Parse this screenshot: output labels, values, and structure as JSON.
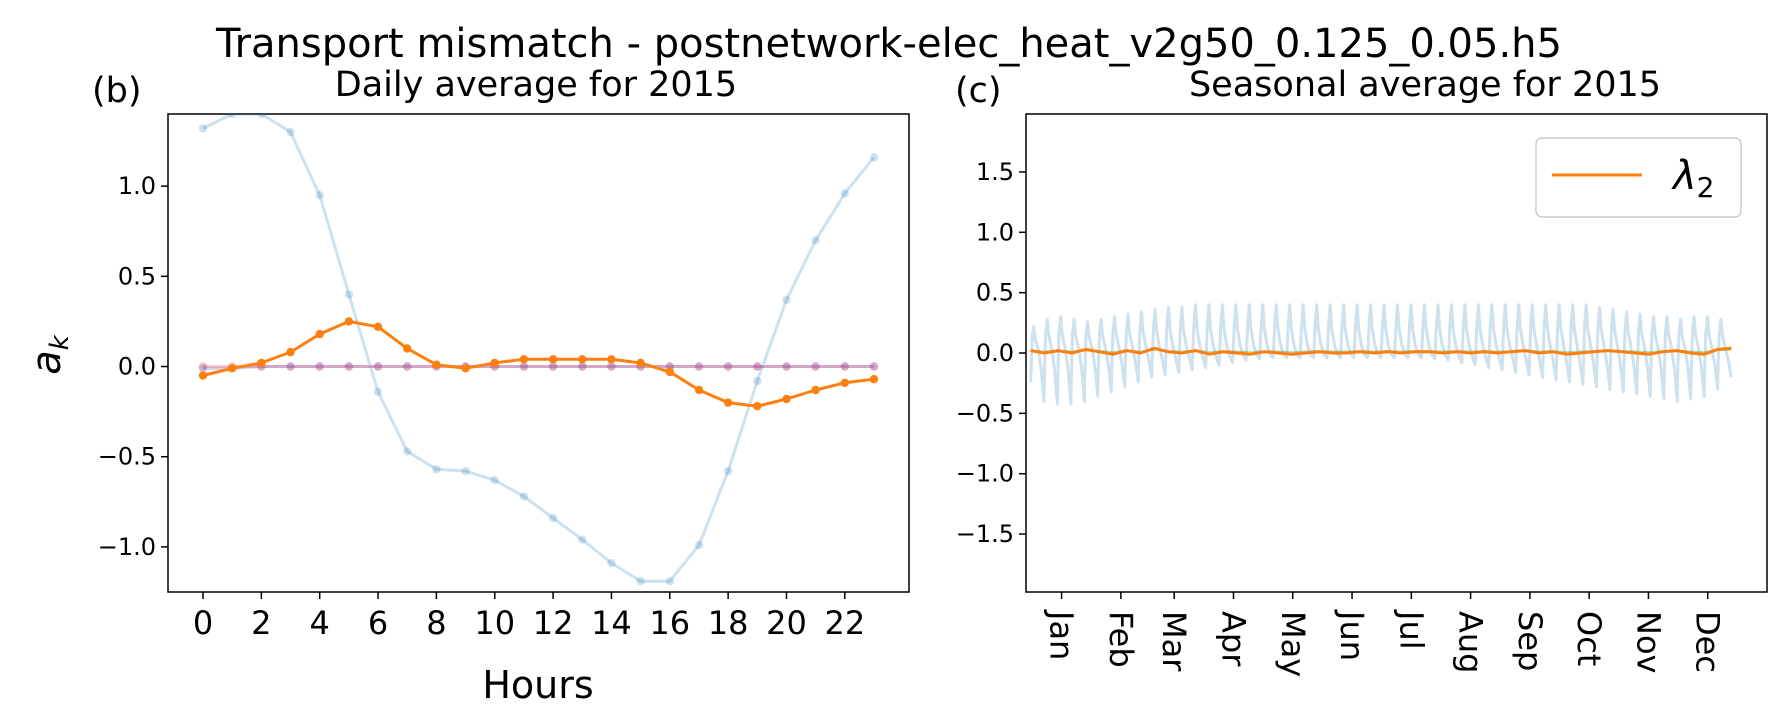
{
  "figure": {
    "suptitle": "Transport mismatch - postnetwork-elec_heat_v2g50_0.125_0.05.h5"
  },
  "colors": {
    "blue": "#1f77b4",
    "orange": "#ff7f0e",
    "red": "#d62728",
    "purple": "#9467bd",
    "green": "#2ca02c"
  },
  "chart_data": [
    {
      "panel_label": "(b)",
      "type": "line",
      "title": "Daily average for 2015",
      "xlabel": "Hours",
      "ylabel": "a",
      "ylabel_sub": "k",
      "xlim": [
        -1.2,
        24.2
      ],
      "ylim": [
        -1.25,
        1.4
      ],
      "x_ticks": [
        0,
        2,
        4,
        6,
        8,
        10,
        12,
        14,
        16,
        18,
        20,
        22
      ],
      "x_tick_labels": [
        "0",
        "2",
        "4",
        "6",
        "8",
        "10",
        "12",
        "14",
        "16",
        "18",
        "20",
        "22"
      ],
      "y_ticks": [
        1.0,
        0.5,
        0.0,
        -0.5,
        -1.0
      ],
      "y_tick_labels": [
        "1.0",
        "0.5",
        "0.0",
        "−0.5",
        "−1.0"
      ],
      "x": [
        0,
        1,
        2,
        3,
        4,
        5,
        6,
        7,
        8,
        9,
        10,
        11,
        12,
        13,
        14,
        15,
        16,
        17,
        18,
        19,
        20,
        21,
        22,
        23
      ],
      "series": [
        {
          "color": "#1f77b4",
          "alpha": 0.22,
          "values": [
            1.32,
            1.4,
            1.4,
            1.3,
            0.95,
            0.4,
            -0.14,
            -0.47,
            -0.57,
            -0.58,
            -0.63,
            -0.72,
            -0.84,
            -0.96,
            -1.09,
            -1.19,
            -1.19,
            -0.99,
            -0.58,
            -0.08,
            0.37,
            0.7,
            0.96,
            1.16
          ]
        },
        {
          "color": "#d62728",
          "alpha": 0.25,
          "values": [
            0,
            0,
            0,
            0,
            0,
            0,
            0,
            0,
            0,
            0,
            0,
            0,
            0,
            0,
            0,
            0,
            0,
            0,
            0,
            0,
            0,
            0,
            0,
            0
          ]
        },
        {
          "color": "#9467bd",
          "alpha": 0.35,
          "values": [
            -0.01,
            -0.01,
            0,
            0,
            0,
            0,
            0,
            0,
            0,
            0,
            0,
            0,
            0,
            0,
            0,
            0,
            0,
            0,
            0,
            0,
            0,
            0,
            0,
            0
          ]
        },
        {
          "color": "#ff7f0e",
          "alpha": 1.0,
          "values": [
            -0.05,
            -0.01,
            0.02,
            0.08,
            0.18,
            0.25,
            0.22,
            0.1,
            0.01,
            -0.01,
            0.02,
            0.04,
            0.04,
            0.04,
            0.04,
            0.02,
            -0.03,
            -0.13,
            -0.2,
            -0.22,
            -0.18,
            -0.13,
            -0.09,
            -0.07
          ]
        }
      ]
    },
    {
      "panel_label": "(c)",
      "type": "line",
      "title": "Seasonal average for 2015",
      "legend": {
        "label": "λ",
        "sub": "2",
        "position": "upper right"
      },
      "xlim": [
        0,
        12.5
      ],
      "ylim": [
        -1.98,
        1.98
      ],
      "y_ticks": [
        1.5,
        1.0,
        0.5,
        0.0,
        -0.5,
        -1.0,
        -1.5
      ],
      "y_tick_labels": [
        "1.5",
        "1.0",
        "0.5",
        "0.0",
        "−0.5",
        "−1.0",
        "−1.5"
      ],
      "month_ticks": [
        0.6,
        1.6,
        2.5,
        3.5,
        4.5,
        5.5,
        6.5,
        7.5,
        8.5,
        9.5,
        10.5,
        11.5
      ],
      "month_labels": [
        "Jan",
        "Feb",
        "Mar",
        "Apr",
        "May",
        "Jun",
        "Jul",
        "Aug",
        "Sep",
        "Oct",
        "Nov",
        "Dec"
      ],
      "weekly_series": {
        "color": "#1f77b4",
        "alpha": 0.22,
        "start": 0.08,
        "end": 11.9,
        "num_weeks": 52,
        "high": [
          0.22,
          0.28,
          0.3,
          0.28,
          0.26,
          0.28,
          0.3,
          0.32,
          0.34,
          0.36,
          0.38,
          0.38,
          0.4,
          0.4,
          0.4,
          0.4,
          0.4,
          0.4,
          0.4,
          0.4,
          0.4,
          0.4,
          0.4,
          0.4,
          0.4,
          0.4,
          0.4,
          0.4,
          0.4,
          0.4,
          0.4,
          0.4,
          0.4,
          0.4,
          0.4,
          0.4,
          0.4,
          0.4,
          0.4,
          0.4,
          0.4,
          0.4,
          0.38,
          0.36,
          0.34,
          0.32,
          0.3,
          0.3,
          0.28,
          0.3,
          0.3,
          0.28
        ],
        "low": [
          -0.4,
          -0.42,
          -0.42,
          -0.4,
          -0.36,
          -0.32,
          -0.28,
          -0.24,
          -0.2,
          -0.18,
          -0.16,
          -0.14,
          -0.12,
          -0.1,
          -0.08,
          -0.06,
          -0.05,
          -0.04,
          -0.04,
          -0.04,
          -0.04,
          -0.04,
          -0.04,
          -0.04,
          -0.04,
          -0.04,
          -0.04,
          -0.04,
          -0.04,
          -0.05,
          -0.06,
          -0.08,
          -0.1,
          -0.12,
          -0.14,
          -0.16,
          -0.18,
          -0.2,
          -0.22,
          -0.24,
          -0.26,
          -0.28,
          -0.3,
          -0.32,
          -0.34,
          -0.36,
          -0.38,
          -0.4,
          -0.38,
          -0.36,
          -0.3,
          -0.2
        ]
      },
      "lambda2_series": {
        "color": "#ff7f0e",
        "values": [
          0.02,
          0.0,
          0.02,
          0.0,
          0.03,
          0.01,
          -0.01,
          0.02,
          0.0,
          0.04,
          0.01,
          0.0,
          0.02,
          -0.01,
          0.01,
          0.0,
          -0.01,
          0.01,
          0.0,
          -0.01,
          0.0,
          0.01,
          0.0,
          0.0,
          0.01,
          0.0,
          0.01,
          0.0,
          0.01,
          0.01,
          0.0,
          0.01,
          0.0,
          0.01,
          0.0,
          0.01,
          0.02,
          0.0,
          0.01,
          -0.01,
          0.0,
          0.01,
          0.02,
          0.01,
          0.0,
          -0.01,
          0.01,
          0.02,
          0.0,
          -0.01,
          0.03,
          0.04
        ]
      }
    }
  ]
}
